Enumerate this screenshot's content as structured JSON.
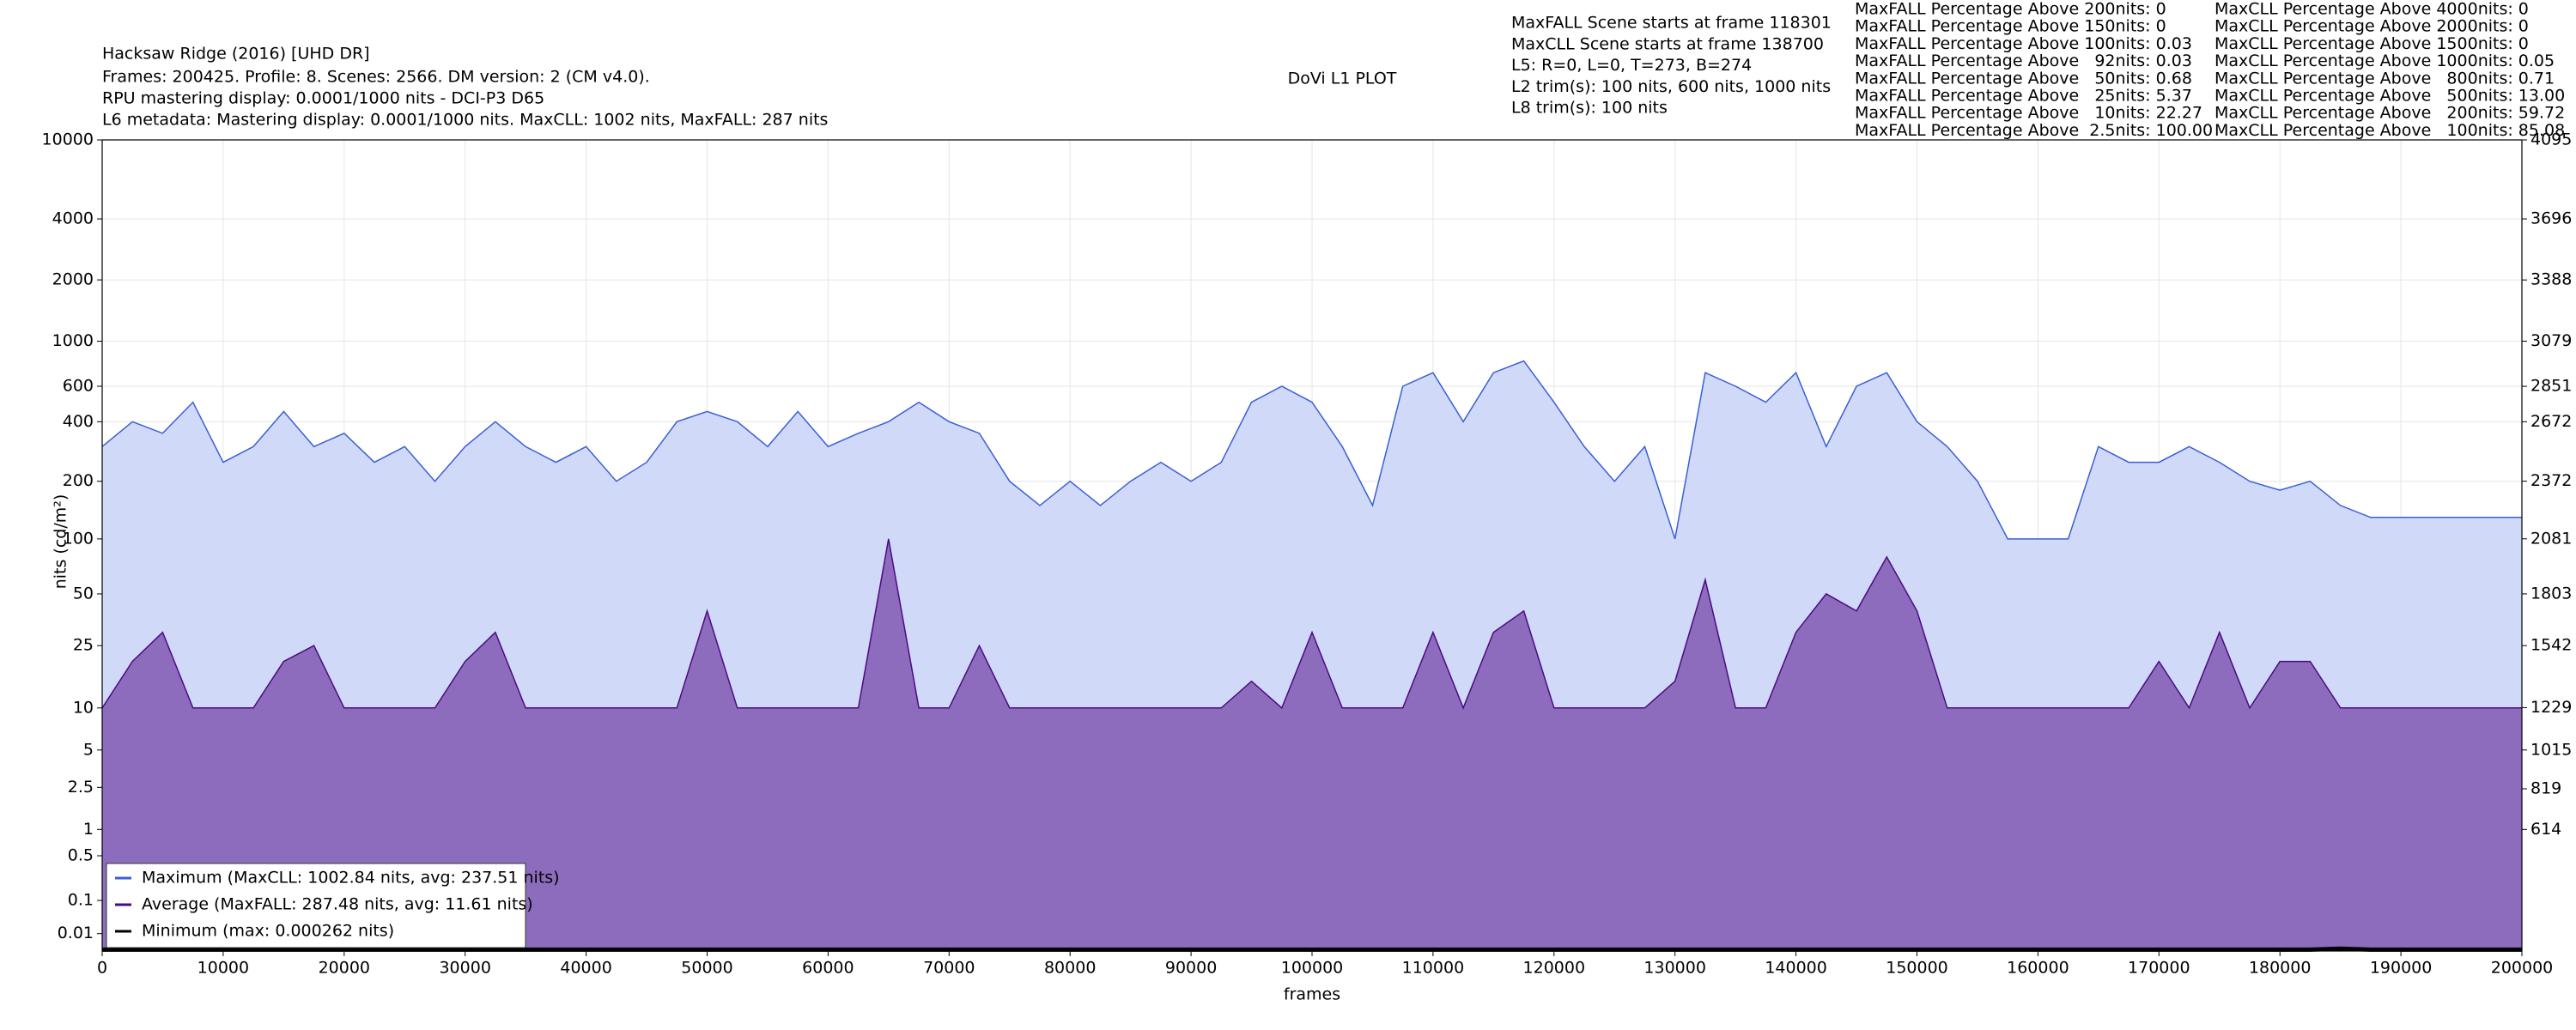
{
  "header": {
    "title": "Hacksaw Ridge (2016) [UHD DR]",
    "lines": [
      "Frames: 200425. Profile: 8. Scenes: 2566. DM version: 2 (CM v4.0).",
      "RPU mastering display: 0.0001/1000 nits - DCI-P3 D65",
      "L6 metadata: Mastering display: 0.0001/1000 nits. MaxCLL: 1002 nits, MaxFALL: 287 nits"
    ]
  },
  "plot_title": "DoVi L1 PLOT",
  "info": [
    "MaxFALL Scene starts at frame 118301",
    "MaxCLL Scene starts at frame 138700",
    "L5: R=0, L=0, T=273, B=274",
    "L2 trim(s): 100 nits, 600 nits, 1000 nits",
    "L8 trim(s): 100 nits"
  ],
  "maxfall_percentages": [
    "MaxFALL Percentage Above 200nits: 0",
    "MaxFALL Percentage Above 150nits: 0",
    "MaxFALL Percentage Above 100nits: 0.03",
    "MaxFALL Percentage Above   92nits: 0.03",
    "MaxFALL Percentage Above   50nits: 0.68",
    "MaxFALL Percentage Above   25nits: 5.37",
    "MaxFALL Percentage Above   10nits: 22.27",
    "MaxFALL Percentage Above  2.5nits: 100.00"
  ],
  "maxcll_percentages": [
    "MaxCLL Percentage Above 4000nits: 0",
    "MaxCLL Percentage Above 2000nits: 0",
    "MaxCLL Percentage Above 1500nits: 0",
    "MaxCLL Percentage Above 1000nits: 0.05",
    "MaxCLL Percentage Above   800nits: 0.71",
    "MaxCLL Percentage Above   500nits: 13.00",
    "MaxCLL Percentage Above   200nits: 59.72",
    "MaxCLL Percentage Above   100nits: 85.08"
  ],
  "chart_data": {
    "type": "line",
    "xlabel": "frames",
    "ylabel": "nits (cd/m²)",
    "yscale": "pq",
    "grid": true,
    "legend": "lower left",
    "x": [
      0,
      2500,
      5000,
      7500,
      10000,
      12500,
      15000,
      17500,
      20000,
      22500,
      25000,
      27500,
      30000,
      32500,
      35000,
      37500,
      40000,
      42500,
      45000,
      47500,
      50000,
      52500,
      55000,
      57500,
      60000,
      62500,
      65000,
      67500,
      70000,
      72500,
      75000,
      77500,
      80000,
      82500,
      85000,
      87500,
      90000,
      92500,
      95000,
      97500,
      100000,
      102500,
      105000,
      107500,
      110000,
      112500,
      115000,
      117500,
      120000,
      122500,
      125000,
      127500,
      130000,
      132500,
      135000,
      137500,
      140000,
      142500,
      145000,
      147500,
      150000,
      152500,
      155000,
      157500,
      160000,
      162500,
      165000,
      167500,
      170000,
      172500,
      175000,
      177500,
      180000,
      182500,
      185000,
      187500,
      190000,
      192500,
      195000,
      197500,
      200000
    ],
    "series": [
      {
        "name": "Maximum (MaxCLL: 1002.84 nits, avg: 237.51 nits)",
        "color": "#3a5fd6",
        "fill_color": "#d0d9f8",
        "values": [
          300,
          400,
          350,
          500,
          250,
          300,
          450,
          300,
          350,
          250,
          300,
          200,
          300,
          400,
          300,
          250,
          300,
          200,
          250,
          400,
          450,
          400,
          300,
          450,
          300,
          350,
          400,
          500,
          400,
          350,
          200,
          150,
          200,
          150,
          200,
          250,
          200,
          250,
          500,
          600,
          500,
          300,
          150,
          600,
          700,
          400,
          700,
          800,
          500,
          300,
          200,
          300,
          100,
          700,
          600,
          500,
          700,
          300,
          600,
          700,
          400,
          300,
          200,
          100,
          100,
          100,
          300,
          250,
          250,
          300,
          250,
          200,
          180,
          200,
          150,
          130,
          130,
          130,
          130,
          130,
          130
        ]
      },
      {
        "name": "Average (MaxFALL: 287.48 nits, avg: 11.61 nits)",
        "color": "#4b0a82",
        "fill_color": "#8e6cbd",
        "values": [
          10,
          20,
          30,
          10,
          10,
          10,
          20,
          25,
          10,
          10,
          10,
          10,
          20,
          30,
          10,
          10,
          10,
          10,
          10,
          10,
          40,
          10,
          10,
          10,
          10,
          10,
          100,
          10,
          10,
          25,
          10,
          10,
          10,
          10,
          10,
          10,
          10,
          10,
          15,
          10,
          30,
          10,
          10,
          10,
          30,
          10,
          30,
          40,
          10,
          10,
          10,
          10,
          15,
          60,
          10,
          10,
          30,
          50,
          40,
          80,
          40,
          10,
          10,
          10,
          10,
          10,
          10,
          10,
          20,
          10,
          30,
          10,
          20,
          20,
          10,
          10,
          10,
          10,
          10,
          10,
          10
        ]
      },
      {
        "name": "Minimum (max: 0.000262 nits)",
        "color": "#000000",
        "values": [
          0.0001,
          0.0001,
          0.0001,
          0.0001,
          0.0001,
          0.0001,
          0.0001,
          0.0001,
          0.0001,
          0.0001,
          0.0001,
          0.0001,
          0.0001,
          0.0001,
          0.0001,
          0.0001,
          0.0001,
          0.0001,
          0.0001,
          0.0001,
          0.0001,
          0.0001,
          0.0001,
          0.0001,
          0.0001,
          0.0001,
          0.0001,
          0.0001,
          0.0001,
          0.0001,
          0.0001,
          0.0001,
          0.0001,
          0.0001,
          0.0001,
          0.0001,
          0.0001,
          0.0001,
          0.0001,
          0.0001,
          0.0001,
          0.0001,
          0.0001,
          0.0001,
          0.0001,
          0.0001,
          0.0001,
          0.0001,
          0.0001,
          0.0001,
          0.0001,
          0.0001,
          0.0001,
          0.0001,
          0.0001,
          0.0001,
          0.0001,
          0.0001,
          0.0001,
          0.0001,
          0.0001,
          0.0001,
          0.0001,
          0.0001,
          0.0001,
          0.0001,
          0.0001,
          0.0001,
          0.0001,
          0.0001,
          0.0001,
          0.0001,
          0.0001,
          0.0001,
          0.000262,
          0.0001,
          0.0001,
          0.0001,
          0.0001,
          0.0001,
          0.0001
        ]
      }
    ],
    "xlim": [
      0,
      200000
    ],
    "xticks": [
      0,
      10000,
      20000,
      30000,
      40000,
      50000,
      60000,
      70000,
      80000,
      90000,
      100000,
      110000,
      120000,
      130000,
      140000,
      150000,
      160000,
      170000,
      180000,
      190000,
      200000
    ],
    "ylim": [
      0,
      10000
    ],
    "yticks": [
      0.01,
      0.1,
      0.5,
      1,
      2.5,
      5,
      10,
      25,
      50,
      100,
      200,
      400,
      600,
      1000,
      2000,
      4000,
      10000
    ],
    "y2lim": [
      0,
      4095
    ],
    "y2ticks": [
      614,
      819,
      1015,
      1229,
      1542,
      1803,
      2081,
      2372,
      2672,
      2851,
      3079,
      3388,
      3696,
      4095
    ]
  }
}
